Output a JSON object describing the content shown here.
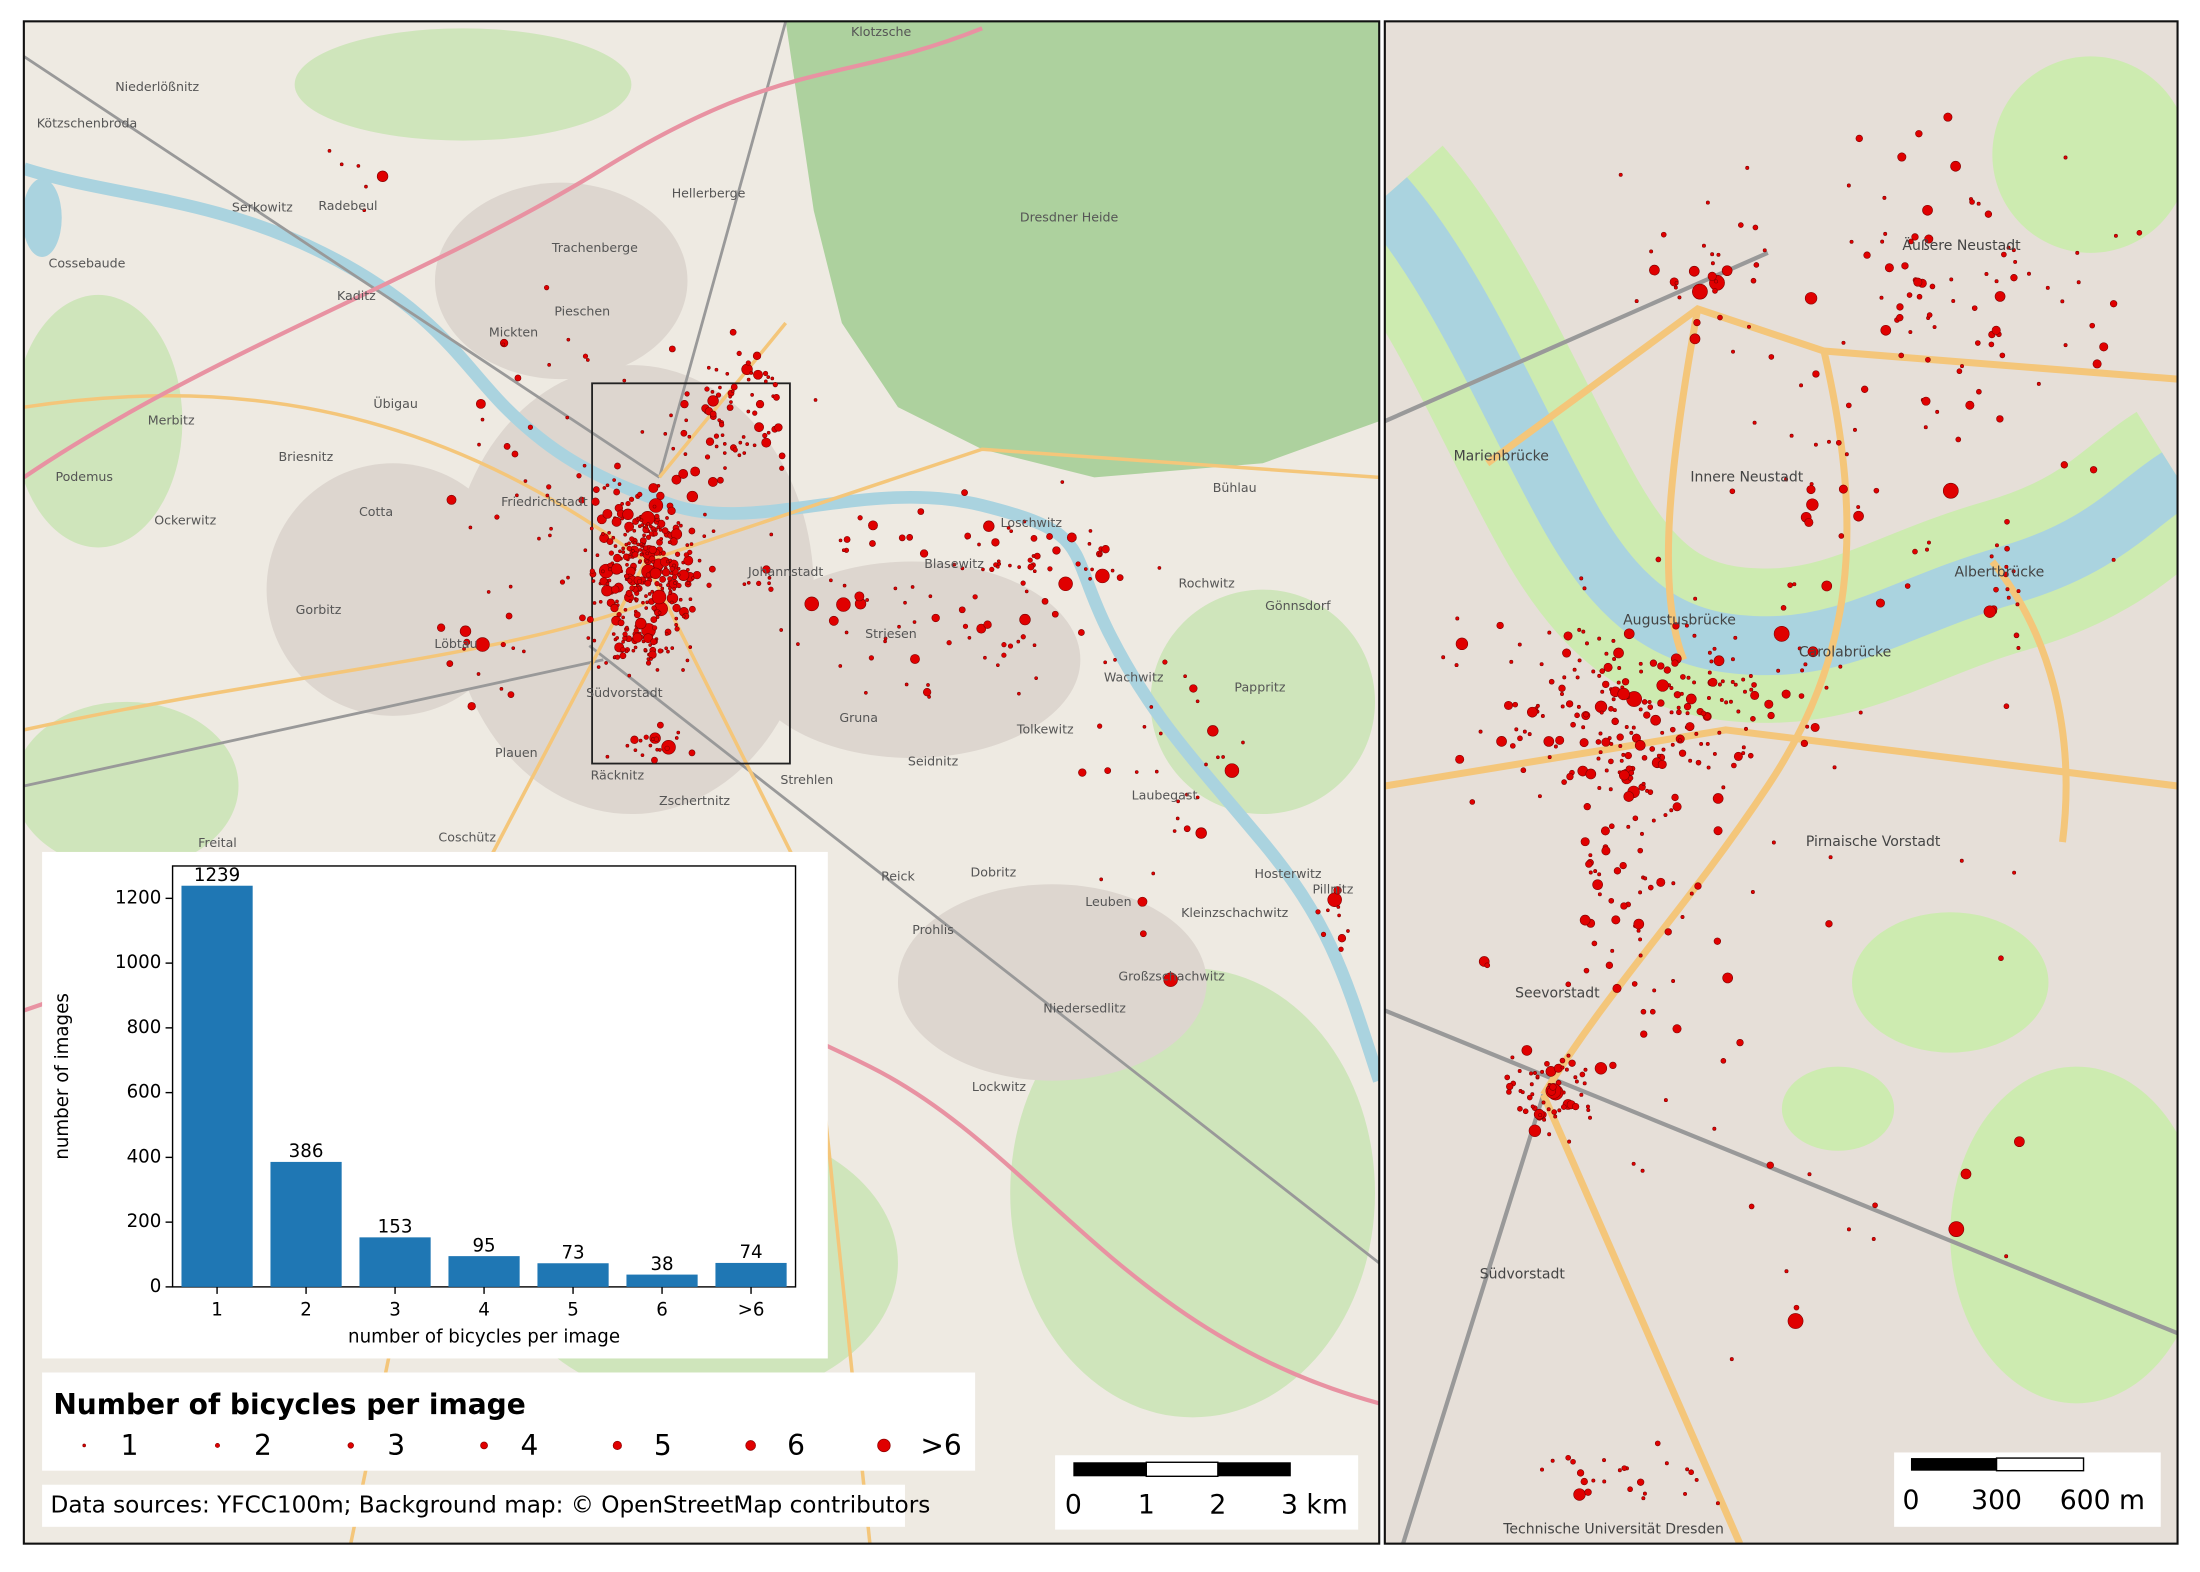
{
  "chart_data": {
    "type": "bar",
    "categories": [
      "1",
      "2",
      "3",
      "4",
      "5",
      "6",
      ">6"
    ],
    "values": [
      1239,
      386,
      153,
      95,
      73,
      38,
      74
    ],
    "color": "#1f77b4",
    "xlabel": "number of bicycles per image",
    "ylabel": "number of images",
    "ylim": [
      0,
      1300
    ],
    "yticks": [
      0,
      200,
      400,
      600,
      800,
      1000,
      1200
    ]
  },
  "legend": {
    "title": "Number of bicycles per image",
    "items": [
      "1",
      "2",
      "3",
      "4",
      "5",
      "6",
      ">6"
    ]
  },
  "attribution": "Data sources: YFCC100m; Background map: © OpenStreetMap contributors",
  "scale_bars": [
    {
      "labels": [
        "0",
        "1",
        "2",
        "3 km"
      ]
    },
    {
      "labels": [
        "0",
        "300",
        "600 m"
      ]
    }
  ],
  "overview_map": {
    "labels": [
      "Radebeul",
      "Dresdner Heide",
      "Klotzsche",
      "Hellerberge",
      "Trachenberge",
      "Pieschen",
      "Mickten",
      "Übigau",
      "Friedrichstadt",
      "Johannstadt",
      "Blasewitz",
      "Loschwitz",
      "Bühlau",
      "Striesen",
      "Gruna",
      "Seidnitz",
      "Tolkewitz",
      "Laubegast",
      "Leuben",
      "Prohlis",
      "Plauen",
      "Südvorstadt",
      "Strehlen",
      "Zschertnitz",
      "Räcknitz",
      "Coschütz",
      "Freital",
      "Gorbitz",
      "Cotta",
      "Löbtau",
      "Niedersedlitz",
      "Lockwitz",
      "Großzschachwitz",
      "Pillnitz",
      "Hosterwitz",
      "Kleinzschachwitz",
      "Wachwitz",
      "Rochwitz",
      "Gönnsdorf",
      "Pappritz",
      "Dobritz",
      "Reick",
      "Kaditz",
      "Serkowitz",
      "Niederlößnitz",
      "Kötzschenbroda",
      "Cossebaude",
      "Ockerwitz",
      "Podemus",
      "Briesnitz",
      "Merbitz"
    ]
  },
  "detail_map": {
    "labels": [
      "Albertbrücke",
      "Carolabrücke",
      "Augustusbrücke",
      "Marienbrücke",
      "Innere Neustadt",
      "Äußere Neustadt",
      "Pirnaische Vorstadt",
      "Seevorstadt",
      "Südvorstadt",
      "Technische Universität Dresden"
    ]
  }
}
